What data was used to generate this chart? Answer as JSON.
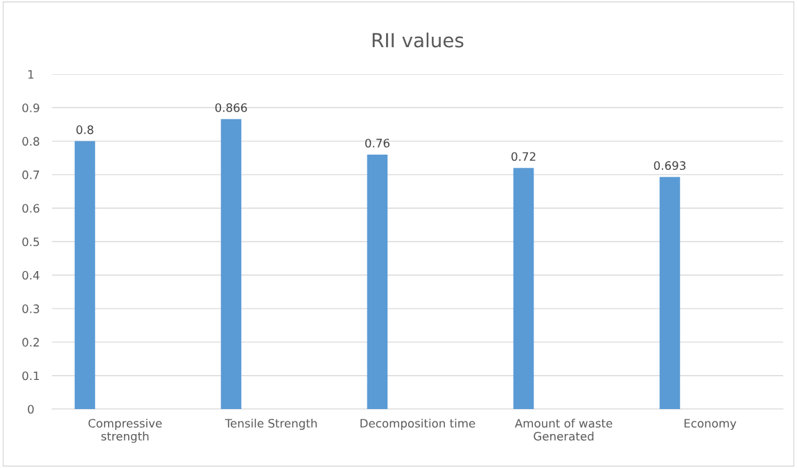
{
  "chart_data": {
    "type": "bar",
    "title": "RII values",
    "categories": [
      "Compressive\nstrength",
      "Tensile Strength",
      "Decomposition time",
      "Amount of waste\nGenerated",
      "Economy"
    ],
    "values": [
      0.8,
      0.866,
      0.76,
      0.72,
      0.693
    ],
    "color": "#5b9bd5",
    "ylim": [
      0,
      1
    ],
    "yticks": [
      0,
      0.1,
      0.2,
      0.3,
      0.4,
      0.5,
      0.6,
      0.7,
      0.8,
      0.9,
      1
    ],
    "grid": "y",
    "data_labels": true,
    "legend": false
  }
}
